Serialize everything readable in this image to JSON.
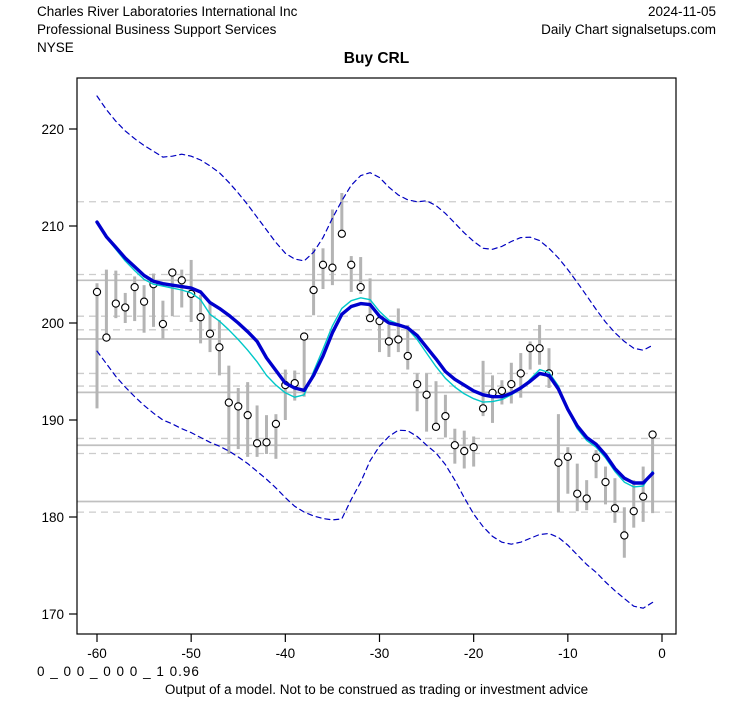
{
  "header": {
    "company": "Charles River Laboratories International Inc",
    "date": "2024-11-05",
    "sector": "Professional Business Support Services",
    "source": "Daily Chart signalsetups.com",
    "exchange": "NYSE",
    "title": "Buy CRL"
  },
  "footer": {
    "model_code": "0 _ 0 0 _ 0 0 0 _ 1 0.96",
    "disclaimer": "Output of a model. Not to be construed as trading or investment advice"
  },
  "chart_data": {
    "type": "line",
    "title": "Buy CRL",
    "xlabel": "",
    "ylabel": "",
    "x_ticks": [
      -60,
      -50,
      -40,
      -30,
      -20,
      -10,
      0
    ],
    "y_ticks": [
      170,
      180,
      190,
      200,
      210,
      220
    ],
    "xlim": [
      -61.8,
      1.5
    ],
    "ylim": [
      167.9,
      225.3
    ],
    "grid": false,
    "legend": "none",
    "x": [
      -60,
      -59,
      -58,
      -57,
      -56,
      -55,
      -54,
      -53,
      -52,
      -51,
      -50,
      -49,
      -48,
      -47,
      -46,
      -45,
      -44,
      -43,
      -42,
      -41,
      -40,
      -39,
      -38,
      -37,
      -36,
      -35,
      -34,
      -33,
      -32,
      -31,
      -30,
      -29,
      -28,
      -27,
      -26,
      -25,
      -24,
      -23,
      -22,
      -21,
      -20,
      -19,
      -18,
      -17,
      -16,
      -15,
      -14,
      -13,
      -12,
      -11,
      -10,
      -9,
      -8,
      -7,
      -6,
      -5,
      -4,
      -3,
      -2,
      -1
    ],
    "series": [
      {
        "name": "upper-band",
        "style": "dashed",
        "color": "#0000C0",
        "width": 1.2,
        "values": [
          223.4,
          222.0,
          220.8,
          219.8,
          219.0,
          218.3,
          217.7,
          217.1,
          217.2,
          217.4,
          217.2,
          216.8,
          216.2,
          215.5,
          214.5,
          213.4,
          212.2,
          210.9,
          209.6,
          208.3,
          207.2,
          206.6,
          206.4,
          207.3,
          208.8,
          210.8,
          212.6,
          214.2,
          215.2,
          215.5,
          215.0,
          214.0,
          213.2,
          212.7,
          212.5,
          212.6,
          212.1,
          211.3,
          210.3,
          209.3,
          208.4,
          207.7,
          207.6,
          207.9,
          208.4,
          208.8,
          208.85,
          208.5,
          207.7,
          206.7,
          205.5,
          204.2,
          202.8,
          201.4,
          200.1,
          199.0,
          198.1,
          197.4,
          197.2,
          197.7
        ]
      },
      {
        "name": "lower-band",
        "style": "dashed",
        "color": "#0000C0",
        "width": 1.2,
        "values": [
          197.1,
          195.8,
          194.5,
          193.4,
          192.4,
          191.5,
          190.7,
          190.0,
          189.6,
          189.1,
          188.7,
          188.2,
          187.7,
          187.3,
          186.8,
          186.2,
          185.5,
          184.7,
          183.9,
          183.0,
          182.0,
          181.1,
          180.5,
          180.1,
          179.85,
          179.7,
          179.8,
          181.8,
          183.6,
          185.8,
          187.3,
          188.3,
          188.95,
          188.9,
          188.3,
          187.4,
          186.6,
          185.4,
          183.8,
          182.0,
          180.3,
          179.0,
          178.0,
          177.4,
          177.2,
          177.4,
          177.8,
          178.2,
          178.3,
          177.9,
          177.1,
          176.1,
          175.1,
          174.3,
          173.3,
          172.4,
          171.6,
          170.8,
          170.6,
          171.2
        ]
      },
      {
        "name": "ma-secondary",
        "style": "solid",
        "color": "#00C8C8",
        "width": 1.4,
        "values": [
          210.3,
          208.8,
          207.6,
          206.4,
          205.4,
          204.5,
          204.0,
          203.8,
          203.6,
          203.4,
          203.1,
          202.4,
          200.9,
          200.2,
          199.3,
          198.3,
          197.2,
          196.0,
          194.6,
          193.6,
          192.8,
          192.35,
          192.6,
          195.0,
          197.3,
          199.7,
          201.5,
          202.3,
          202.6,
          202.4,
          201.2,
          200.3,
          199.9,
          199.4,
          198.3,
          196.9,
          195.5,
          194.3,
          193.4,
          192.7,
          192.2,
          191.85,
          191.9,
          192.1,
          192.6,
          193.2,
          194.2,
          195.2,
          194.9,
          193.5,
          191.0,
          189.1,
          187.9,
          187.2,
          186.1,
          184.7,
          183.6,
          183.1,
          183.2,
          184.7
        ]
      },
      {
        "name": "ma-primary",
        "style": "solid",
        "color": "#0000CD",
        "width": 3.4,
        "values": [
          210.4,
          208.9,
          207.8,
          206.7,
          205.8,
          204.9,
          204.3,
          204.05,
          203.9,
          203.75,
          203.6,
          203.2,
          202.1,
          201.5,
          200.8,
          200.0,
          199.1,
          198.1,
          196.4,
          195.1,
          193.8,
          193.3,
          193.05,
          194.6,
          196.6,
          199.0,
          200.9,
          201.7,
          202.0,
          201.9,
          200.7,
          200.0,
          199.8,
          199.5,
          198.7,
          197.5,
          196.3,
          195.0,
          194.2,
          193.6,
          193.0,
          192.6,
          192.4,
          192.4,
          192.75,
          193.3,
          194.0,
          194.8,
          194.6,
          193.2,
          191.1,
          189.4,
          188.2,
          187.5,
          186.4,
          185.0,
          184.0,
          183.5,
          183.5,
          184.5
        ]
      }
    ],
    "price_bars": {
      "description": "high-low bars with open circle at close",
      "bar_color": "#B4B4B4",
      "circle_fill": "#FFFFFF",
      "circle_stroke": "#000000",
      "items": [
        [
          -60,
          204.1,
          191.2,
          203.2
        ],
        [
          -59,
          205.5,
          198.2,
          198.5
        ],
        [
          -58,
          205.4,
          200.5,
          202.0
        ],
        [
          -57,
          203.1,
          200.0,
          201.6
        ],
        [
          -56,
          204.8,
          200.2,
          203.7
        ],
        [
          -55,
          203.9,
          199.0,
          202.2
        ],
        [
          -54,
          205.1,
          199.6,
          204.0
        ],
        [
          -53,
          202.3,
          198.4,
          199.9
        ],
        [
          -52,
          205.5,
          200.7,
          205.2
        ],
        [
          -51,
          205.5,
          201.6,
          204.4
        ],
        [
          -50,
          206.5,
          200.1,
          203.0
        ],
        [
          -49,
          202.9,
          197.9,
          200.6
        ],
        [
          -48,
          202.0,
          197.0,
          198.9
        ],
        [
          -47,
          200.3,
          194.6,
          197.5
        ],
        [
          -46,
          195.6,
          186.5,
          191.8
        ],
        [
          -45,
          193.3,
          187.0,
          191.4
        ],
        [
          -44,
          193.9,
          186.2,
          190.5
        ],
        [
          -43,
          191.5,
          186.2,
          187.6
        ],
        [
          -42,
          190.5,
          186.5,
          187.7
        ],
        [
          -41,
          190.6,
          186.0,
          189.6
        ],
        [
          -40,
          195.2,
          190.0,
          193.6
        ],
        [
          -39,
          195.1,
          192.0,
          193.8
        ],
        [
          -38,
          198.9,
          192.4,
          198.6
        ],
        [
          -37,
          207.7,
          200.8,
          203.4
        ],
        [
          -36,
          207.7,
          203.5,
          206.0
        ],
        [
          -35,
          211.7,
          203.9,
          205.7
        ],
        [
          -34,
          213.4,
          209.1,
          209.2
        ],
        [
          -33,
          206.9,
          203.2,
          206.0
        ],
        [
          -32,
          206.8,
          203.0,
          203.7
        ],
        [
          -31,
          204.6,
          200.4,
          200.5
        ],
        [
          -30,
          200.7,
          197.0,
          200.2
        ],
        [
          -29,
          199.8,
          196.5,
          198.1
        ],
        [
          -28,
          201.5,
          197.0,
          198.3
        ],
        [
          -27,
          199.8,
          195.2,
          196.6
        ],
        [
          -26,
          194.8,
          190.9,
          193.7
        ],
        [
          -25,
          194.8,
          188.8,
          192.6
        ],
        [
          -24,
          194.0,
          189.1,
          189.3
        ],
        [
          -23,
          192.6,
          188.2,
          190.4
        ],
        [
          -22,
          189.1,
          185.5,
          187.4
        ],
        [
          -21,
          188.9,
          185.0,
          186.8
        ],
        [
          -20,
          188.3,
          185.2,
          187.2
        ],
        [
          -19,
          196.1,
          190.4,
          191.2
        ],
        [
          -18,
          194.6,
          189.7,
          192.8
        ],
        [
          -17,
          194.1,
          191.6,
          193.0
        ],
        [
          -16,
          195.9,
          191.7,
          193.7
        ],
        [
          -15,
          196.9,
          192.3,
          194.8
        ],
        [
          -14,
          198.1,
          195.2,
          197.4
        ],
        [
          -13,
          199.8,
          195.7,
          197.4
        ],
        [
          -12,
          197.4,
          193.3,
          194.8
        ],
        [
          -11,
          190.6,
          180.5,
          185.6
        ],
        [
          -10,
          187.2,
          182.4,
          186.2
        ],
        [
          -9,
          185.5,
          180.6,
          182.4
        ],
        [
          -8,
          183.8,
          180.7,
          181.9
        ],
        [
          -7,
          186.9,
          184.0,
          186.1
        ],
        [
          -6,
          185.2,
          181.3,
          183.6
        ],
        [
          -5,
          184.0,
          179.4,
          180.9
        ],
        [
          -4,
          181.0,
          175.8,
          178.1
        ],
        [
          -3,
          183.8,
          178.9,
          180.6
        ],
        [
          -2,
          185.2,
          179.5,
          182.1
        ],
        [
          -1,
          188.5,
          180.4,
          188.5
        ]
      ]
    },
    "levels": {
      "color_dashed": "#CCCCCC",
      "color_solid": "#C0C0C0",
      "solid": [
        204.4,
        198.35,
        192.85,
        187.4,
        181.6
      ],
      "dashed": [
        212.5,
        205.0,
        200.7,
        199.3,
        194.8,
        193.5,
        188.1,
        186.55,
        180.5
      ]
    }
  }
}
